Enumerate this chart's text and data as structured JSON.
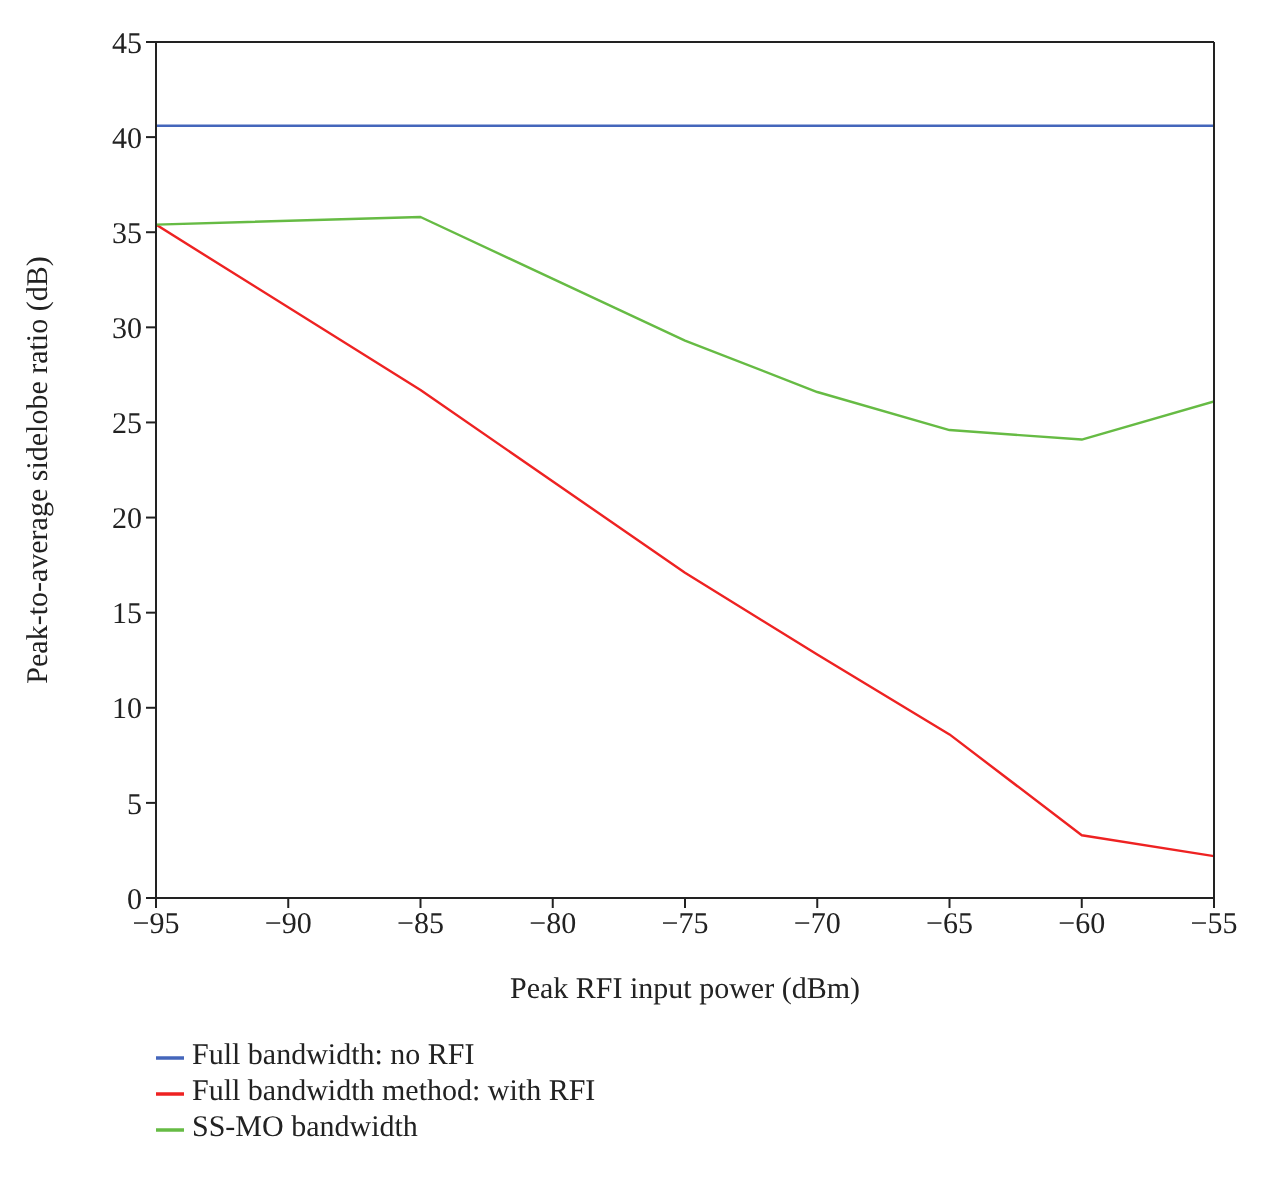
{
  "chart_data": {
    "type": "line",
    "xlabel": "Peak RFI input power (dBm)",
    "ylabel": "Peak-to-average sidelobe ratio (dB)",
    "x": [
      -95,
      -85,
      -75,
      -70,
      -65,
      -60,
      -55
    ],
    "series": [
      {
        "name": "Full bandwidth: no RFI",
        "color": "#4466bb",
        "values": [
          40.6,
          40.6,
          40.6,
          40.6,
          40.6,
          40.6,
          40.6
        ]
      },
      {
        "name": "Full bandwidth method: with RFI",
        "color": "#ee2222",
        "values": [
          35.4,
          26.7,
          17.1,
          12.8,
          8.6,
          3.3,
          2.2
        ]
      },
      {
        "name": "SS-MO bandwidth",
        "color": "#66bb44",
        "values": [
          35.4,
          35.8,
          29.3,
          26.6,
          24.6,
          24.1,
          26.1
        ]
      }
    ],
    "xlim": [
      -95,
      -55
    ],
    "xticks": [
      {
        "value": -95,
        "label": "−95"
      },
      {
        "value": -90,
        "label": "−90"
      },
      {
        "value": -85,
        "label": "−85"
      },
      {
        "value": -80,
        "label": "−80"
      },
      {
        "value": -75,
        "label": "−75"
      },
      {
        "value": -70,
        "label": "−70"
      },
      {
        "value": -65,
        "label": "−65"
      },
      {
        "value": -60,
        "label": "−60"
      },
      {
        "value": -55,
        "label": "−55"
      }
    ],
    "ylim": [
      0,
      45
    ],
    "yticks": [
      0,
      5,
      10,
      15,
      20,
      25,
      30,
      35,
      40,
      45
    ],
    "grid": false,
    "legend": "bottom",
    "marker": "none",
    "line_style": "solid"
  }
}
